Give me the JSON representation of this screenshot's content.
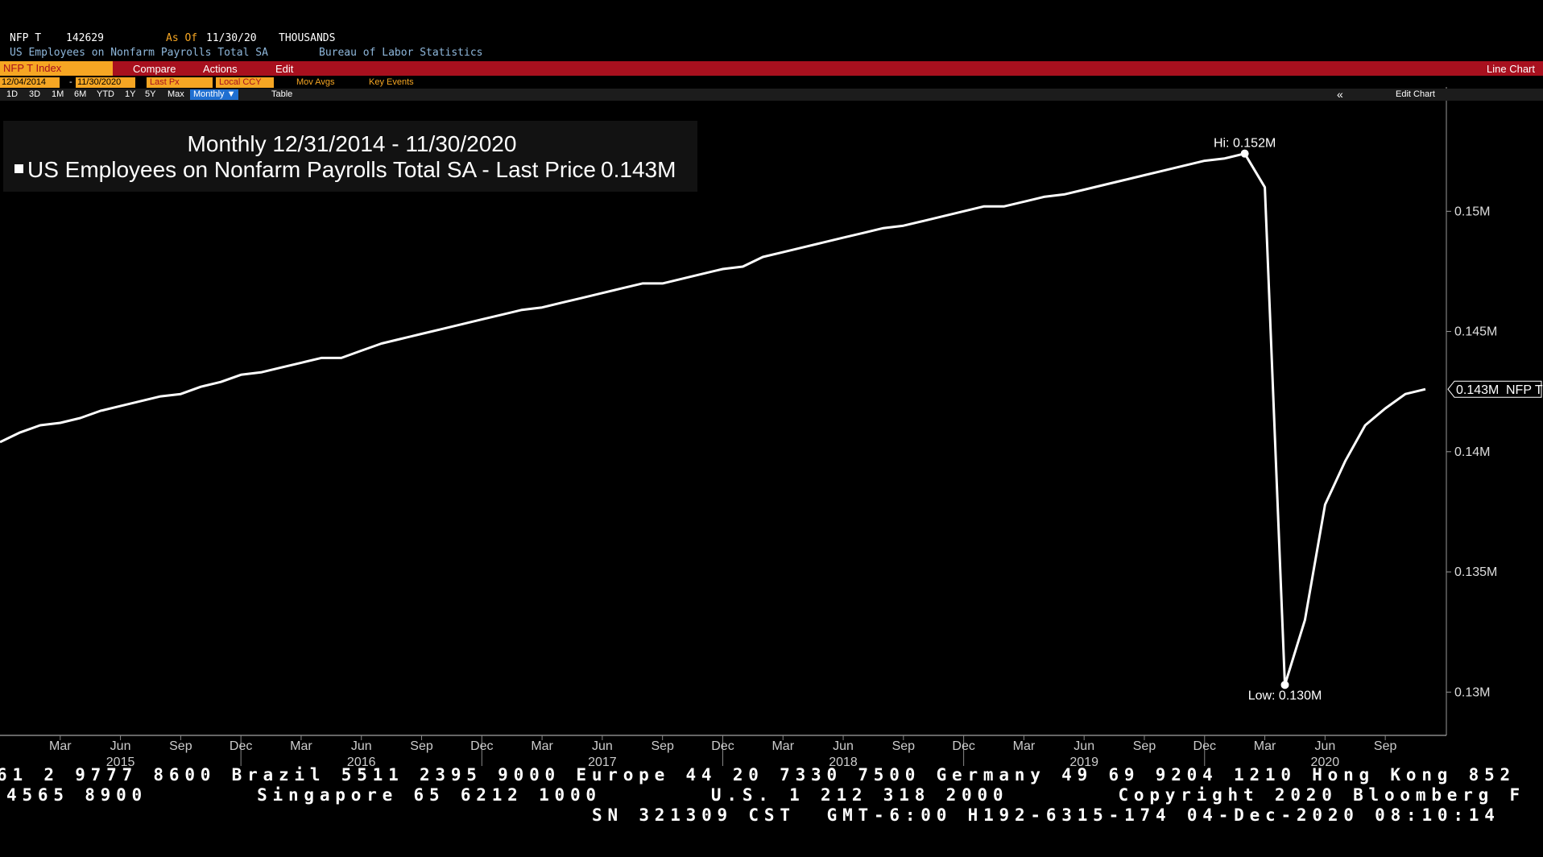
{
  "header": {
    "ticker": "NFP T",
    "last": "142629",
    "as_of_label": "As Of",
    "as_of": "11/30/20",
    "units": "THOUSANDS",
    "description": "US Employees on Nonfarm Payrolls Total SA",
    "source": "Bureau of Labor Statistics"
  },
  "toolbar": {
    "security": "NFP T Index",
    "buttons": [
      "Compare",
      "Actions",
      "Edit"
    ],
    "view": "Line Chart",
    "start_date": "12/04/2014",
    "date_separator": "-",
    "end_date": "11/30/2020",
    "field": "Last Px",
    "currency": "Local CCY",
    "options": [
      "Mov Avgs",
      "Key Events"
    ],
    "ranges": [
      "1D",
      "3D",
      "1M",
      "6M",
      "YTD",
      "1Y",
      "5Y",
      "Max"
    ],
    "frequency": "Monthly ▼",
    "table": "Table",
    "back": "«",
    "edit_chart": "Edit Chart"
  },
  "chart_data": {
    "type": "line",
    "title": "Monthly 12/31/2014 - 11/30/2020",
    "categories": [
      "2014-12",
      "2015-01",
      "2015-02",
      "2015-03",
      "2015-04",
      "2015-05",
      "2015-06",
      "2015-07",
      "2015-08",
      "2015-09",
      "2015-10",
      "2015-11",
      "2015-12",
      "2016-01",
      "2016-02",
      "2016-03",
      "2016-04",
      "2016-05",
      "2016-06",
      "2016-07",
      "2016-08",
      "2016-09",
      "2016-10",
      "2016-11",
      "2016-12",
      "2017-01",
      "2017-02",
      "2017-03",
      "2017-04",
      "2017-05",
      "2017-06",
      "2017-07",
      "2017-08",
      "2017-09",
      "2017-10",
      "2017-11",
      "2017-12",
      "2018-01",
      "2018-02",
      "2018-03",
      "2018-04",
      "2018-05",
      "2018-06",
      "2018-07",
      "2018-08",
      "2018-09",
      "2018-10",
      "2018-11",
      "2018-12",
      "2019-01",
      "2019-02",
      "2019-03",
      "2019-04",
      "2019-05",
      "2019-06",
      "2019-07",
      "2019-08",
      "2019-09",
      "2019-10",
      "2019-11",
      "2019-12",
      "2020-01",
      "2020-02",
      "2020-03",
      "2020-04",
      "2020-05",
      "2020-06",
      "2020-07",
      "2020-08",
      "2020-09",
      "2020-10",
      "2020-11"
    ],
    "series": [
      {
        "name": "US Employees on Nonfarm Payrolls Total SA - Last Price",
        "color": "#ffffff",
        "values": [
          0.1404,
          0.1408,
          0.1411,
          0.1412,
          0.1414,
          0.1417,
          0.1419,
          0.1421,
          0.1423,
          0.1424,
          0.1427,
          0.1429,
          0.1432,
          0.1433,
          0.1435,
          0.1437,
          0.1439,
          0.1439,
          0.1442,
          0.1445,
          0.1447,
          0.1449,
          0.1451,
          0.1453,
          0.1455,
          0.1457,
          0.1459,
          0.146,
          0.1462,
          0.1464,
          0.1466,
          0.1468,
          0.147,
          0.147,
          0.1472,
          0.1474,
          0.1476,
          0.1477,
          0.1481,
          0.1483,
          0.1485,
          0.1487,
          0.1489,
          0.1491,
          0.1493,
          0.1494,
          0.1496,
          0.1498,
          0.15,
          0.1502,
          0.1502,
          0.1504,
          0.1506,
          0.1507,
          0.1509,
          0.1511,
          0.1513,
          0.1515,
          0.1517,
          0.1519,
          0.1521,
          0.1522,
          0.1524,
          0.151,
          0.1303,
          0.133,
          0.1378,
          0.1396,
          0.1411,
          0.1418,
          0.1424,
          0.1426
        ]
      }
    ],
    "last_price_label": "0.143M",
    "hi_label": "Hi: 0.152M",
    "low_label": "Low: 0.130M",
    "ylim": [
      0.1282,
      0.1545
    ],
    "yticks": [
      {
        "value": 0.13,
        "label": "0.13M"
      },
      {
        "value": 0.135,
        "label": "0.135M"
      },
      {
        "value": 0.14,
        "label": "0.14M"
      },
      {
        "value": 0.145,
        "label": "0.145M"
      },
      {
        "value": 0.15,
        "label": "0.15M"
      }
    ],
    "xticks": [
      {
        "value": "2015-03",
        "label": "Mar"
      },
      {
        "value": "2015-06",
        "label": "Jun"
      },
      {
        "value": "2015-09",
        "label": "Sep"
      },
      {
        "value": "2015-12",
        "label": "Dec"
      },
      {
        "value": "2016-03",
        "label": "Mar"
      },
      {
        "value": "2016-06",
        "label": "Jun"
      },
      {
        "value": "2016-09",
        "label": "Sep"
      },
      {
        "value": "2016-12",
        "label": "Dec"
      },
      {
        "value": "2017-03",
        "label": "Mar"
      },
      {
        "value": "2017-06",
        "label": "Jun"
      },
      {
        "value": "2017-09",
        "label": "Sep"
      },
      {
        "value": "2017-12",
        "label": "Dec"
      },
      {
        "value": "2018-03",
        "label": "Mar"
      },
      {
        "value": "2018-06",
        "label": "Jun"
      },
      {
        "value": "2018-09",
        "label": "Sep"
      },
      {
        "value": "2018-12",
        "label": "Dec"
      },
      {
        "value": "2019-03",
        "label": "Mar"
      },
      {
        "value": "2019-06",
        "label": "Jun"
      },
      {
        "value": "2019-09",
        "label": "Sep"
      },
      {
        "value": "2019-12",
        "label": "Dec"
      },
      {
        "value": "2020-03",
        "label": "Mar"
      },
      {
        "value": "2020-06",
        "label": "Jun"
      },
      {
        "value": "2020-09",
        "label": "Sep"
      }
    ],
    "year_labels": [
      {
        "value": "2015-06",
        "label": "2015"
      },
      {
        "value": "2016-06",
        "label": "2016"
      },
      {
        "value": "2017-06",
        "label": "2017"
      },
      {
        "value": "2018-06",
        "label": "2018"
      },
      {
        "value": "2019-06",
        "label": "2019"
      },
      {
        "value": "2020-06",
        "label": "2020"
      }
    ],
    "y_axis_side": "right"
  },
  "footer": [
    "61 2 9777 8600 Brazil 5511 2395 9000 Europe 44 20 7330 7500 Germany 49 69 9204 1210 Hong Kong 852",
    "4565 8900       Singapore 65 6212 1000       U.S. 1 212 318 2000       Copyright 2020 Bloomberg F",
    "SN 321309 CST  GMT-6:00 H192-6315-174 04-Dec-2020 08:10:14"
  ]
}
